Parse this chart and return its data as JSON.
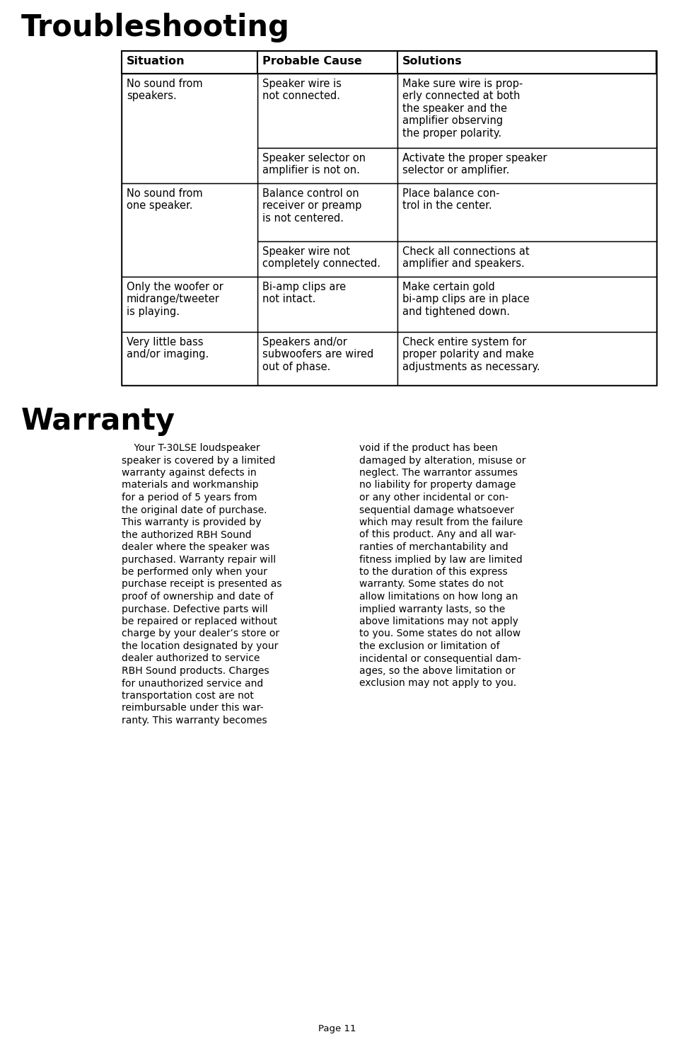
{
  "bg_color": "#ffffff",
  "title_troubleshooting": "Troubleshooting",
  "title_warranty": "Warranty",
  "title_fontsize": 30,
  "title_fontweight": "bold",
  "table_headers": [
    "Situation",
    "Probable Cause",
    "Solutions"
  ],
  "table_rows": [
    {
      "situation": "No sound from\nspeakers.",
      "cause": "Speaker wire is\nnot connected.",
      "solution": "Make sure wire is prop-\nerly connected at both\nthe speaker and the\namplifier observing\nthe proper polarity."
    },
    {
      "situation": "",
      "cause": "Speaker selector on\namplifier is not on.",
      "solution": "Activate the proper speaker\nselector or amplifier."
    },
    {
      "situation": "No sound from\none speaker.",
      "cause": "Balance control on\nreceiver or preamp\nis not centered.",
      "solution": "Place balance con-\ntrol in the center."
    },
    {
      "situation": "",
      "cause": "Speaker wire not\ncompletely connected.",
      "solution": "Check all connections at\namplifier and speakers."
    },
    {
      "situation": "Only the woofer or\nmidrange/tweeter\nis playing.",
      "cause": "Bi-amp clips are\nnot intact.",
      "solution": "Make certain gold\nbi-amp clips are in place\nand tightened down."
    },
    {
      "situation": "Very little bass\nand/or imaging.",
      "cause": "Speakers and/or\nsubwoofers are wired\nout of phase.",
      "solution": "Check entire system for\nproper polarity and make\nadjustments as necessary."
    }
  ],
  "warranty_left": "    Your T-30LSE loudspeaker\nspeaker is covered by a limited\nwarranty against defects in\nmaterials and workmanship\nfor a period of 5 years from\nthe original date of purchase.\nThis warranty is provided by\nthe authorized RBH Sound\ndealer where the speaker was\npurchased. Warranty repair will\nbe performed only when your\npurchase receipt is presented as\nproof of ownership and date of\npurchase. Defective parts will\nbe repaired or replaced without\ncharge by your dealer’s store or\nthe location designated by your\ndealer authorized to service\nRBH Sound products. Charges\nfor unauthorized service and\ntransportation cost are not\nreimbursable under this war-\nranty. This warranty becomes",
  "warranty_right": "void if the product has been\ndamaged by alteration, misuse or\nneglect. The warrantor assumes\nno liability for property damage\nor any other incidental or con-\nsequential damage whatsoever\nwhich may result from the failure\nof this product. Any and all war-\nranties of merchantability and\nfitness implied by law are limited\nto the duration of this express\nwarranty. Some states do not\nallow limitations on how long an\nimplied warranty lasts, so the\nabove limitations may not apply\nto you. Some states do not allow\nthe exclusion or limitation of\nincidental or consequential dam-\nages, so the above limitation or\nexclusion may not apply to you.",
  "page_label": "Page 11",
  "text_fontsize": 10.5,
  "header_fontsize": 11.5
}
